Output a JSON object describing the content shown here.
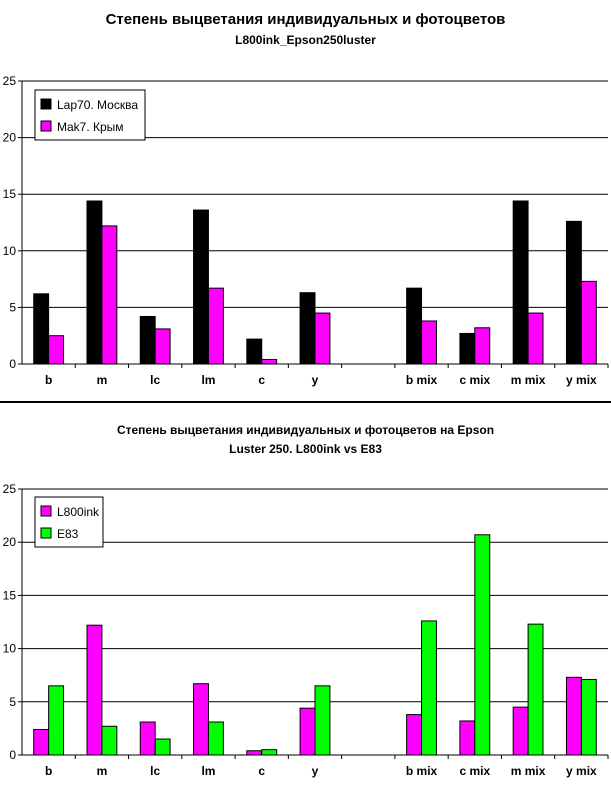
{
  "chart_data": [
    {
      "type": "bar",
      "title": "Степень выцветания индивидуальных и фотоцветов",
      "subtitle": "L800ink_Epson250luster",
      "categories": [
        "b",
        "m",
        "lc",
        "lm",
        "c",
        "y",
        "",
        "b mix",
        "c mix",
        "m mix",
        "y mix"
      ],
      "series": [
        {
          "name": "Lap70. Москва",
          "color": "#000000",
          "values": [
            6.2,
            14.4,
            4.2,
            13.6,
            2.2,
            6.3,
            null,
            6.7,
            2.7,
            14.4,
            12.6
          ]
        },
        {
          "name": "Mak7. Крым",
          "color": "#ff00ff",
          "values": [
            2.5,
            12.2,
            3.1,
            6.7,
            0.4,
            4.5,
            null,
            3.8,
            3.2,
            4.5,
            7.3
          ]
        }
      ],
      "ylim": [
        0,
        25
      ],
      "yticks": [
        0,
        5,
        10,
        15,
        20,
        25
      ],
      "grid": true,
      "legend": "top-left"
    },
    {
      "type": "bar",
      "title": "Степень выцветания индивидуальных и фотоцветов на Epson",
      "subtitle": "Luster 250. L800ink vs E83",
      "categories": [
        "b",
        "m",
        "lc",
        "lm",
        "c",
        "y",
        "",
        "b mix",
        "c mix",
        "m mix",
        "y mix"
      ],
      "series": [
        {
          "name": "L800ink",
          "color": "#ff00ff",
          "values": [
            2.4,
            12.2,
            3.1,
            6.7,
            0.4,
            4.4,
            null,
            3.8,
            3.2,
            4.5,
            7.3
          ]
        },
        {
          "name": "E83",
          "color": "#00ff00",
          "values": [
            6.5,
            2.7,
            1.5,
            3.1,
            0.5,
            6.5,
            null,
            12.6,
            20.7,
            12.3,
            7.1
          ]
        }
      ],
      "ylim": [
        0,
        25
      ],
      "yticks": [
        0,
        5,
        10,
        15,
        20,
        25
      ],
      "grid": true,
      "legend": "top-left"
    }
  ]
}
